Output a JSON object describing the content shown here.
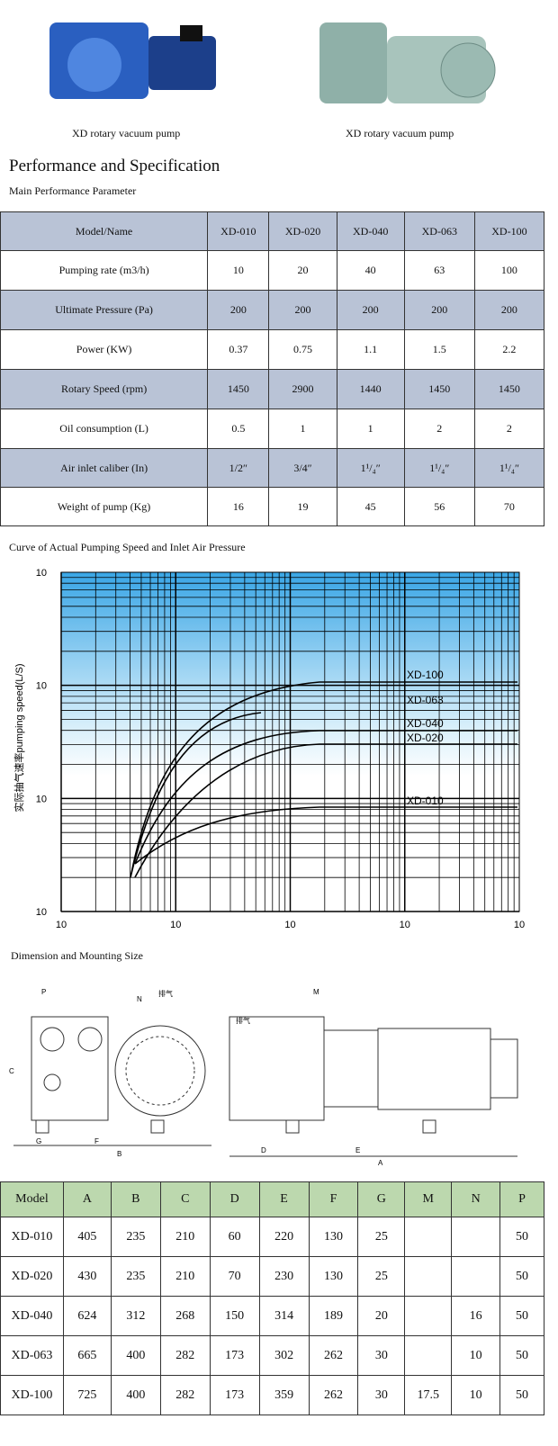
{
  "products": [
    {
      "caption": "XD rotary vacuum pump"
    },
    {
      "caption": "XD rotary vacuum pump"
    }
  ],
  "heading": "Performance and Specification",
  "performance": {
    "title": "Main Performance Parameter",
    "header": [
      "Model/Name",
      "XD-010",
      "XD-020",
      "XD-040",
      "XD-063",
      "XD-100"
    ],
    "rows": [
      [
        "Pumping rate (m3/h)",
        "10",
        "20",
        "40",
        "63",
        "100"
      ],
      [
        "Ultimate Pressure (Pa)",
        "200",
        "200",
        "200",
        "200",
        "200"
      ],
      [
        "Power (KW)",
        "0.37",
        "0.75",
        "1.1",
        "1.5",
        "2.2"
      ],
      [
        "Rotary Speed (rpm)",
        "1450",
        "2900",
        "1440",
        "1450",
        "1450"
      ],
      [
        "Oil consumption (L)",
        "0.5",
        "1",
        "1",
        "2",
        "2"
      ],
      [
        "Air inlet caliber (In)",
        "1/2″",
        "3/4″",
        "1¹/₄″",
        "1¹/₄″",
        "1¹/₄″"
      ],
      [
        "Weight of pump (Kg)",
        "16",
        "19",
        "45",
        "56",
        "70"
      ]
    ]
  },
  "curve": {
    "title": "Curve of Actual Pumping Speed and Inlet Air Pressure",
    "y_label": "实际抽气速率pumping speed(L/S)",
    "yticks": [
      "10",
      "10",
      "10",
      "10"
    ],
    "xticks": [
      "10",
      "10",
      "10",
      "10",
      "10"
    ],
    "labels": [
      "XD-100",
      "XD-063",
      "XD-040",
      "XD-020",
      "XD-010"
    ]
  },
  "dimension": {
    "title": "Dimension and Mounting Size",
    "drawing_labels": [
      "P",
      "N",
      "排气",
      "C",
      "G",
      "F",
      "B",
      "M",
      "排气",
      "D",
      "E",
      "A"
    ],
    "header": [
      "Model",
      "A",
      "B",
      "C",
      "D",
      "E",
      "F",
      "G",
      "M",
      "N",
      "P"
    ],
    "rows": [
      [
        "XD-010",
        "405",
        "235",
        "210",
        "60",
        "220",
        "130",
        "25",
        null,
        null,
        "50"
      ],
      [
        "XD-020",
        "430",
        "235",
        "210",
        "70",
        "230",
        "130",
        "25",
        null,
        null,
        "50"
      ],
      [
        "XD-040",
        "624",
        "312",
        "268",
        "150",
        "314",
        "189",
        "20",
        null,
        "16",
        "50"
      ],
      [
        "XD-063",
        "665",
        "400",
        "282",
        "173",
        "302",
        "262",
        "30",
        null,
        "10",
        "50"
      ],
      [
        "XD-100",
        "725",
        "400",
        "282",
        "173",
        "359",
        "262",
        "30",
        "17.5",
        "10",
        "50"
      ]
    ]
  }
}
